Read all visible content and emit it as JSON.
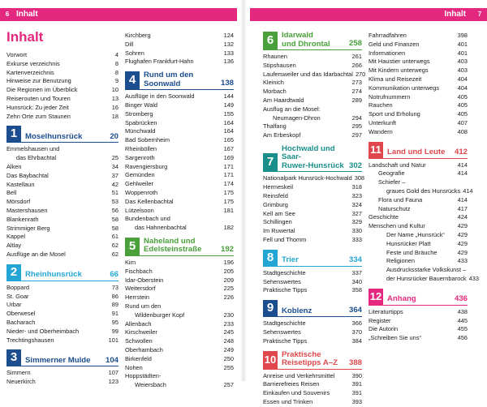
{
  "header_left": {
    "page": "6",
    "title": "Inhalt"
  },
  "header_right": {
    "page": "7",
    "title": "Inhalt"
  },
  "main_title": "Inhalt",
  "col1": {
    "intro": [
      [
        "Vorwort",
        "4"
      ],
      [
        "Exkurse verzeichnis",
        "8"
      ],
      [
        "Kartenverzeichnis",
        "8"
      ],
      [
        "Hinweise zur Benutzung",
        "9"
      ],
      [
        "Die Regionen im Überblick",
        "10"
      ],
      [
        "Reiserouten und Touren",
        "13"
      ],
      [
        "Hunsrück: Zu jeder Zeit",
        "16"
      ],
      [
        "Zehn Orte zum Staunen",
        "18"
      ]
    ],
    "s1": {
      "num": "1",
      "title": "Moselhunsrück",
      "page": "20"
    },
    "s1_items": [
      [
        "Emmelshausen und",
        ""
      ],
      [
        "das Ehrbachtal",
        "25"
      ],
      [
        "Alken",
        "34"
      ],
      [
        "Das Baybachtal",
        "37"
      ],
      [
        "Kastellaun",
        "42"
      ],
      [
        "Bell",
        "51"
      ],
      [
        "Mörsdorf",
        "53"
      ],
      [
        "Mastershausen",
        "56"
      ],
      [
        "Blankenrath",
        "58"
      ],
      [
        "Strimmiger Berg",
        "58"
      ],
      [
        "Kappel",
        "61"
      ],
      [
        "Altlay",
        "62"
      ],
      [
        "Ausflüge an die Mosel",
        "62"
      ]
    ],
    "s2": {
      "num": "2",
      "title": "Rheinhunsrück",
      "page": "66"
    },
    "s2_items": [
      [
        "Boppard",
        "73"
      ],
      [
        "St. Goar",
        "86"
      ],
      [
        "Urbar",
        "89"
      ],
      [
        "Oberwesel",
        "91"
      ],
      [
        "Bacharach",
        "95"
      ],
      [
        "Nieder- und Oberheimbach",
        "99"
      ],
      [
        "Trechtingshausen",
        "101"
      ]
    ],
    "s3": {
      "num": "3",
      "title": "Simmerner Mulde",
      "page": "104"
    },
    "s3_items": [
      [
        "Simmern",
        "107"
      ],
      [
        "Neuerkirch",
        "123"
      ]
    ]
  },
  "col2": {
    "top_items": [
      [
        "Kirchberg",
        "124"
      ],
      [
        "Dill",
        "132"
      ],
      [
        "Sohren",
        "133"
      ],
      [
        "Flughafen Frankfurt-Hahn",
        "136"
      ]
    ],
    "s4": {
      "num": "4",
      "title1": "Rund um den",
      "title2": "Soonwald",
      "page": "138"
    },
    "s4_items": [
      [
        "Ausflüge in den Soonwald",
        "144"
      ],
      [
        "Binger Wald",
        "149"
      ],
      [
        "Stromberg",
        "155"
      ],
      [
        "Spabrücken",
        "164"
      ],
      [
        "Münchwald",
        "164"
      ],
      [
        "Bad Sobernheim",
        "165"
      ],
      [
        "Rheinböllen",
        "167"
      ],
      [
        "Sargenroth",
        "169"
      ],
      [
        "Ravengiersburg",
        "171"
      ],
      [
        "Gemünden",
        "171"
      ],
      [
        "Gehlweiler",
        "174"
      ],
      [
        "Woppenroth",
        "175"
      ],
      [
        "Das Kellenbachtal",
        "175"
      ],
      [
        "Lützelsoon",
        "181"
      ],
      [
        "Bundenbach und",
        ""
      ],
      [
        "das Hahnenbachtal",
        "182"
      ]
    ],
    "s5": {
      "num": "5",
      "title1": "Naheland und",
      "title2": "Edelsteinstraße",
      "page": "192"
    },
    "s5_items": [
      [
        "Kirn",
        "196"
      ],
      [
        "Fischbach",
        "205"
      ],
      [
        "Idar-Oberstein",
        "209"
      ],
      [
        "Weitersdorf",
        "225"
      ],
      [
        "Herrstein",
        "226"
      ],
      [
        "Rund um den",
        ""
      ],
      [
        "Wildenburger Kopf",
        "230"
      ],
      [
        "Allenbach",
        "233"
      ],
      [
        "Kirschweiler",
        "245"
      ],
      [
        "Schwollen",
        "248"
      ],
      [
        "Oberhambach",
        "249"
      ],
      [
        "Birkenfeld",
        "250"
      ],
      [
        "Nohen",
        "255"
      ],
      [
        "Hoppstädten-",
        ""
      ],
      [
        "Weiersbach",
        "257"
      ]
    ]
  },
  "col3": {
    "s6": {
      "num": "6",
      "title1": "Idarwald",
      "title2": "und Dhrontal",
      "page": "258"
    },
    "s6_items": [
      [
        "Rhaunen",
        "261"
      ],
      [
        "Stipshausen",
        "266"
      ],
      [
        "Laufersweiler und das Idarbachtal",
        "270"
      ],
      [
        "Kleinich",
        "273"
      ],
      [
        "Morbach",
        "274"
      ],
      [
        "Am Haardtwald",
        "289"
      ],
      [
        "Ausflug an die Mosel:",
        ""
      ],
      [
        "Neumagen-Dhron",
        "294"
      ],
      [
        "Thalfang",
        "295"
      ],
      [
        "Am Erbeskopf",
        "297"
      ]
    ],
    "s7": {
      "num": "7",
      "title1": "Hochwald und Saar-",
      "title2": "Ruwer-Hunsrück",
      "page": "302"
    },
    "s7_items": [
      [
        "Nationalpark Hunsrück-Hochwald",
        "308"
      ],
      [
        "Hermeskeil",
        "318"
      ],
      [
        "Reinsfeld",
        "323"
      ],
      [
        "Grimburg",
        "324"
      ],
      [
        "Kell am See",
        "327"
      ],
      [
        "Schillingen",
        "329"
      ],
      [
        "Im Ruwertal",
        "330"
      ],
      [
        "Fell und Thomm",
        "333"
      ]
    ],
    "s8": {
      "num": "8",
      "title": "Trier",
      "page": "334"
    },
    "s8_items": [
      [
        "Stadtgeschichte",
        "337"
      ],
      [
        "Sehenswertes",
        "340"
      ],
      [
        "Praktische Tipps",
        "358"
      ]
    ],
    "s9": {
      "num": "9",
      "title": "Koblenz",
      "page": "364"
    },
    "s9_items": [
      [
        "Stadtgeschichte",
        "366"
      ],
      [
        "Sehenswertes",
        "370"
      ],
      [
        "Praktische Tipps",
        "384"
      ]
    ],
    "s10": {
      "num": "10",
      "title1": "Praktische",
      "title2": "Reisetipps A–Z",
      "page": "388"
    },
    "s10_items": [
      [
        "Anreise und Verkehrsmittel",
        "390"
      ],
      [
        "Barrierefreies Reisen",
        "391"
      ],
      [
        "Einkaufen und Souvenirs",
        "391"
      ],
      [
        "Essen und Trinken",
        "393"
      ]
    ]
  },
  "col4": {
    "top_items": [
      [
        "Fahrradfahren",
        "398"
      ],
      [
        "Geld und Finanzen",
        "401"
      ],
      [
        "Informationen",
        "401"
      ],
      [
        "Mit Haustier unterwegs",
        "403"
      ],
      [
        "Mit Kindern unterwegs",
        "403"
      ],
      [
        "Klima und Reisezeit",
        "404"
      ],
      [
        "Kommunikation unterwegs",
        "404"
      ],
      [
        "Notrufnummern",
        "405"
      ],
      [
        "Rauchen",
        "405"
      ],
      [
        "Sport und Erholung",
        "405"
      ],
      [
        "Unterkunft",
        "407"
      ],
      [
        "Wandern",
        "408"
      ]
    ],
    "s11": {
      "num": "11",
      "title": "Land und Leute",
      "page": "412"
    },
    "s11_items": [
      [
        "Landschaft und Natur",
        "414"
      ],
      [
        "Geografie",
        "414"
      ],
      [
        "Schiefer –",
        ""
      ],
      [
        "graues Gold des Hunsrücks",
        "414"
      ],
      [
        "Flora und Fauna",
        "414"
      ],
      [
        "Naturschutz",
        "417"
      ],
      [
        "Geschichte",
        "424"
      ],
      [
        "Menschen und Kultur",
        "429"
      ],
      [
        "Der Name „Hunsrück“",
        "429"
      ],
      [
        "Hunsrücker Platt",
        "429"
      ],
      [
        "Feste und Bräuche",
        "429"
      ],
      [
        "Religionen",
        "433"
      ],
      [
        "Ausdrucksstarke Volkskunst –",
        ""
      ],
      [
        "der Hunsrücker Bauernbarock",
        "433"
      ]
    ],
    "s12": {
      "num": "12",
      "title": "Anhang",
      "page": "436"
    },
    "s12_items": [
      [
        "Literaturtipps",
        "438"
      ],
      [
        "Register",
        "445"
      ],
      [
        "Die Autorin",
        "455"
      ],
      [
        "„Schreiben Sie uns“",
        "456"
      ]
    ]
  }
}
